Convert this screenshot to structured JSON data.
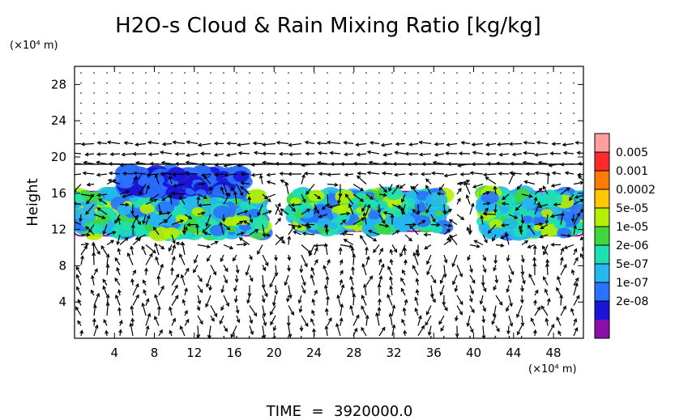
{
  "chart_data": {
    "type": "heatmap",
    "title": "H2O-s Cloud & Rain Mixing Ratio [kg/kg]",
    "ylabel": "Height",
    "xunit": "(×10⁴ m)",
    "yunit": "(×10⁴ m)",
    "xlim": [
      0,
      51
    ],
    "ylim": [
      0,
      30
    ],
    "xticks": [
      4,
      8,
      12,
      16,
      20,
      24,
      28,
      32,
      36,
      40,
      44,
      48
    ],
    "yticks": [
      4,
      8,
      12,
      16,
      20,
      24,
      28
    ],
    "colorbar": {
      "labels": [
        "0.005",
        "0.001",
        "0.0002",
        "5e-05",
        "1e-05",
        "2e-06",
        "5e-07",
        "1e-07",
        "2e-08"
      ],
      "colors": [
        "#ff9e9e",
        "#ff2a2a",
        "#ff7a00",
        "#ffc800",
        "#b6f000",
        "#3ed83e",
        "#1ee0b4",
        "#26b6f0",
        "#2a72ff",
        "#1a14d6",
        "#8a0fa8"
      ]
    },
    "cloud_regions": [
      {
        "x": [
          0,
          19
        ],
        "y": [
          11.5,
          16
        ],
        "level": "1e-05"
      },
      {
        "x": [
          5,
          17
        ],
        "y": [
          16,
          18.5
        ],
        "level": "1e-07"
      },
      {
        "x": [
          22,
          37
        ],
        "y": [
          12,
          16
        ],
        "level": "1e-05"
      },
      {
        "x": [
          41,
          51
        ],
        "y": [
          11.5,
          16
        ],
        "level": "1e-05"
      }
    ],
    "time_label": "TIME",
    "time_value": "3920000.0"
  }
}
